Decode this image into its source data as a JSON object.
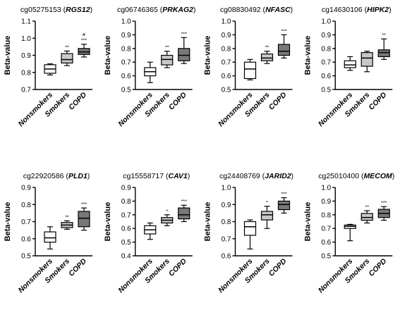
{
  "colors": {
    "box_fills": [
      "#ffffff",
      "#c8c8c8",
      "#787878"
    ],
    "stroke": "#000000"
  },
  "chart_data": [
    {
      "type": "box",
      "title_prefix": "cg05275153 (",
      "title_gene": "RGS12",
      "title_suffix": ")",
      "ylabel": "Beta-value",
      "categories": [
        "Nonsmokers",
        "Smokers",
        "COPD"
      ],
      "ylim": [
        0.7,
        1.1
      ],
      "yticks": [
        "0.7",
        "0.8",
        "0.9",
        "1.0",
        "1.1"
      ],
      "boxes": [
        {
          "min": 0.785,
          "q1": 0.795,
          "median": 0.82,
          "q3": 0.845,
          "max": 0.85,
          "sig": ""
        },
        {
          "min": 0.84,
          "q1": 0.855,
          "median": 0.875,
          "q3": 0.91,
          "max": 0.925,
          "sig": "**"
        },
        {
          "min": 0.89,
          "q1": 0.905,
          "median": 0.92,
          "q3": 0.94,
          "max": 0.965,
          "sig": "#\n***"
        }
      ]
    },
    {
      "type": "box",
      "title_prefix": "cg06746365 (",
      "title_gene": "PRKAG2",
      "title_suffix": ")",
      "ylabel": "Beta-value",
      "categories": [
        "Nonsmokers",
        "Smokers",
        "COPD"
      ],
      "ylim": [
        0.5,
        1.0
      ],
      "yticks": [
        "0.5",
        "0.6",
        "0.7",
        "0.8",
        "0.9",
        "1.0"
      ],
      "boxes": [
        {
          "min": 0.55,
          "q1": 0.6,
          "median": 0.63,
          "q3": 0.66,
          "max": 0.7,
          "sig": ""
        },
        {
          "min": 0.66,
          "q1": 0.68,
          "median": 0.72,
          "q3": 0.75,
          "max": 0.78,
          "sig": "**"
        },
        {
          "min": 0.69,
          "q1": 0.71,
          "median": 0.75,
          "q3": 0.8,
          "max": 0.88,
          "sig": "***"
        }
      ]
    },
    {
      "type": "box",
      "title_prefix": "cg08830492 (",
      "title_gene": "NFASC",
      "title_suffix": ")",
      "ylabel": "Beta-value",
      "categories": [
        "Nonsmokers",
        "Smokers",
        "COPD"
      ],
      "ylim": [
        0.5,
        1.0
      ],
      "yticks": [
        "0.5",
        "0.6",
        "0.7",
        "0.8",
        "0.9",
        "1.0"
      ],
      "boxes": [
        {
          "min": 0.57,
          "q1": 0.58,
          "median": 0.65,
          "q3": 0.7,
          "max": 0.72,
          "sig": ""
        },
        {
          "min": 0.69,
          "q1": 0.71,
          "median": 0.73,
          "q3": 0.76,
          "max": 0.78,
          "sig": "**"
        },
        {
          "min": 0.73,
          "q1": 0.75,
          "median": 0.78,
          "q3": 0.83,
          "max": 0.9,
          "sig": "***"
        }
      ]
    },
    {
      "type": "box",
      "title_prefix": "cg14630106 (",
      "title_gene": "HIPK2",
      "title_suffix": ")",
      "ylabel": "Beta-value",
      "categories": [
        "Nonsmokers",
        "Smokers",
        "COPD"
      ],
      "ylim": [
        0.5,
        1.0
      ],
      "yticks": [
        "0.5",
        "0.6",
        "0.7",
        "0.8",
        "0.9",
        "1.0"
      ],
      "boxes": [
        {
          "min": 0.64,
          "q1": 0.66,
          "median": 0.68,
          "q3": 0.71,
          "max": 0.74,
          "sig": ""
        },
        {
          "min": 0.63,
          "q1": 0.67,
          "median": 0.73,
          "q3": 0.77,
          "max": 0.78,
          "sig": ""
        },
        {
          "min": 0.72,
          "q1": 0.74,
          "median": 0.77,
          "q3": 0.79,
          "max": 0.87,
          "sig": "**"
        }
      ]
    },
    {
      "type": "box",
      "title_prefix": "cg22920586 (",
      "title_gene": "PLD1",
      "title_suffix": ")",
      "ylabel": "Beta-value",
      "categories": [
        "Nonsmokers",
        "Smokers",
        "COPD"
      ],
      "ylim": [
        0.5,
        0.9
      ],
      "yticks": [
        "0.5",
        "0.6",
        "0.7",
        "0.8",
        "0.9"
      ],
      "boxes": [
        {
          "min": 0.54,
          "q1": 0.58,
          "median": 0.605,
          "q3": 0.64,
          "max": 0.67,
          "sig": ""
        },
        {
          "min": 0.655,
          "q1": 0.665,
          "median": 0.68,
          "q3": 0.695,
          "max": 0.705,
          "sig": "**"
        },
        {
          "min": 0.65,
          "q1": 0.67,
          "median": 0.72,
          "q3": 0.76,
          "max": 0.78,
          "sig": "***"
        }
      ]
    },
    {
      "type": "box",
      "title_prefix": "cg15558717 (",
      "title_gene": "CAV1",
      "title_suffix": ")",
      "ylabel": "Beta-value",
      "categories": [
        "Nonsmokers",
        "Smokers",
        "COPD"
      ],
      "ylim": [
        0.4,
        0.9
      ],
      "yticks": [
        "0.4",
        "0.5",
        "0.6",
        "0.7",
        "0.8",
        "0.9"
      ],
      "boxes": [
        {
          "min": 0.52,
          "q1": 0.56,
          "median": 0.59,
          "q3": 0.62,
          "max": 0.64,
          "sig": ""
        },
        {
          "min": 0.62,
          "q1": 0.64,
          "median": 0.66,
          "q3": 0.68,
          "max": 0.7,
          "sig": "*"
        },
        {
          "min": 0.65,
          "q1": 0.67,
          "median": 0.7,
          "q3": 0.75,
          "max": 0.77,
          "sig": "***"
        }
      ]
    },
    {
      "type": "box",
      "title_prefix": "cg24408769 (",
      "title_gene": "JARID2",
      "title_suffix": ")",
      "ylabel": "Beta-value",
      "categories": [
        "Nonsmokers",
        "Smokers",
        "COPD"
      ],
      "ylim": [
        0.6,
        1.0
      ],
      "yticks": [
        "0.6",
        "0.7",
        "0.8",
        "0.9",
        "1.0"
      ],
      "boxes": [
        {
          "min": 0.64,
          "q1": 0.72,
          "median": 0.77,
          "q3": 0.8,
          "max": 0.81,
          "sig": ""
        },
        {
          "min": 0.76,
          "q1": 0.81,
          "median": 0.84,
          "q3": 0.86,
          "max": 0.89,
          "sig": "*"
        },
        {
          "min": 0.85,
          "q1": 0.87,
          "median": 0.9,
          "q3": 0.92,
          "max": 0.94,
          "sig": "***"
        }
      ]
    },
    {
      "type": "box",
      "title_prefix": "cg25010400 (",
      "title_gene": "MECOM",
      "title_suffix": ")",
      "ylabel": "Beta-value",
      "categories": [
        "Nonsmokers",
        "Smokers",
        "COPD"
      ],
      "ylim": [
        0.5,
        1.0
      ],
      "yticks": [
        "0.5",
        "0.6",
        "0.7",
        "0.8",
        "0.9",
        "1.0"
      ],
      "boxes": [
        {
          "min": 0.61,
          "q1": 0.7,
          "median": 0.715,
          "q3": 0.725,
          "max": 0.73,
          "sig": ""
        },
        {
          "min": 0.74,
          "q1": 0.76,
          "median": 0.78,
          "q3": 0.81,
          "max": 0.83,
          "sig": "**"
        },
        {
          "min": 0.76,
          "q1": 0.78,
          "median": 0.81,
          "q3": 0.84,
          "max": 0.86,
          "sig": "***"
        }
      ]
    }
  ]
}
